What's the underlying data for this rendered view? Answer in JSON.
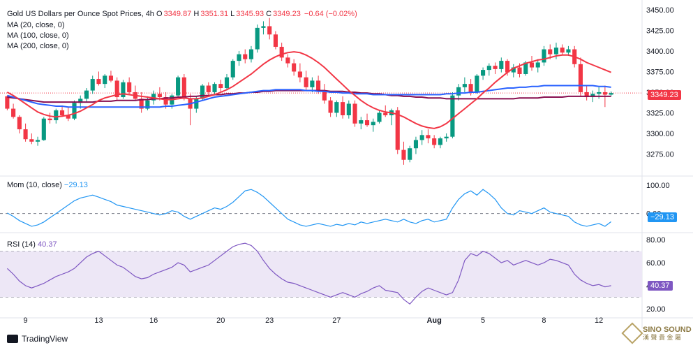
{
  "header": {
    "title": "Gold US Dollars per Ounce Spot Prices, 4h",
    "o_label": "O",
    "o_val": "3349.87",
    "h_label": "H",
    "h_val": "3351.31",
    "l_label": "L",
    "l_val": "3345.93",
    "c_label": "C",
    "c_val": "3349.23",
    "change": "−0.64 (−0.02%)"
  },
  "legend": {
    "ma20": "MA (20, close, 0)",
    "ma100": "MA (100, close, 0)",
    "ma200": "MA (200, close, 0)",
    "mom": "Mom (10, close)",
    "mom_val": "−29.13",
    "rsi": "RSI (14)",
    "rsi_val": "40.37"
  },
  "branding": {
    "tradingview": "TradingView",
    "sino_top": "SINO SOUND",
    "sino_bottom": "漢 聲 貴 金 屬"
  },
  "colors": {
    "up": "#089981",
    "down": "#f23645",
    "ma20": "#f23645",
    "ma100": "#2962ff",
    "ma200": "#880e4f",
    "mom": "#2196f3",
    "rsi": "#7e57c2",
    "rsi_band": "#ede7f6",
    "price_tag": "#f23645",
    "mom_tag": "#2196f3",
    "rsi_tag": "#7e57c2"
  },
  "chart_data": [
    {
      "type": "candlestick",
      "title": "Gold US Dollars per Ounce Spot Prices, 4h",
      "x_ticks": [
        "9",
        "13",
        "16",
        "20",
        "23",
        "27",
        "Aug",
        "5",
        "8",
        "12"
      ],
      "y_ticks": [
        "3450.00",
        "3425.00",
        "3400.00",
        "3375.00",
        "3350.00",
        "3325.00",
        "3300.00",
        "3275.00"
      ],
      "ylim": [
        3250,
        3455
      ],
      "last_price": "3349.23",
      "candles": [
        [
          3345,
          3346,
          3328,
          3330
        ],
        [
          3330,
          3336,
          3318,
          3320
        ],
        [
          3320,
          3322,
          3300,
          3305
        ],
        [
          3305,
          3312,
          3290,
          3293
        ],
        [
          3293,
          3300,
          3287,
          3290
        ],
        [
          3290,
          3296,
          3285,
          3292
        ],
        [
          3292,
          3320,
          3291,
          3318
        ],
        [
          3318,
          3325,
          3312,
          3316
        ],
        [
          3316,
          3330,
          3312,
          3328
        ],
        [
          3328,
          3334,
          3320,
          3322
        ],
        [
          3322,
          3332,
          3315,
          3318
        ],
        [
          3318,
          3340,
          3316,
          3337
        ],
        [
          3337,
          3346,
          3330,
          3342
        ],
        [
          3342,
          3355,
          3338,
          3352
        ],
        [
          3352,
          3370,
          3348,
          3366
        ],
        [
          3366,
          3375,
          3358,
          3360
        ],
        [
          3360,
          3372,
          3355,
          3370
        ],
        [
          3370,
          3376,
          3362,
          3364
        ],
        [
          3364,
          3368,
          3340,
          3344
        ],
        [
          3344,
          3365,
          3342,
          3362
        ],
        [
          3362,
          3368,
          3348,
          3350
        ],
        [
          3350,
          3358,
          3340,
          3342
        ],
        [
          3342,
          3350,
          3325,
          3330
        ],
        [
          3330,
          3345,
          3328,
          3340
        ],
        [
          3340,
          3352,
          3335,
          3348
        ],
        [
          3348,
          3356,
          3340,
          3344
        ],
        [
          3344,
          3350,
          3330,
          3335
        ],
        [
          3335,
          3348,
          3330,
          3346
        ],
        [
          3346,
          3370,
          3344,
          3368
        ],
        [
          3368,
          3372,
          3340,
          3342
        ],
        [
          3342,
          3348,
          3310,
          3330
        ],
        [
          3330,
          3345,
          3325,
          3342
        ],
        [
          3342,
          3360,
          3340,
          3358
        ],
        [
          3358,
          3362,
          3345,
          3350
        ],
        [
          3350,
          3362,
          3346,
          3360
        ],
        [
          3360,
          3365,
          3350,
          3355
        ],
        [
          3355,
          3372,
          3352,
          3368
        ],
        [
          3368,
          3390,
          3365,
          3388
        ],
        [
          3388,
          3400,
          3382,
          3396
        ],
        [
          3396,
          3402,
          3385,
          3390
        ],
        [
          3390,
          3406,
          3386,
          3402
        ],
        [
          3402,
          3432,
          3398,
          3428
        ],
        [
          3428,
          3436,
          3420,
          3430
        ],
        [
          3430,
          3440,
          3414,
          3420
        ],
        [
          3420,
          3424,
          3402,
          3405
        ],
        [
          3405,
          3410,
          3388,
          3392
        ],
        [
          3392,
          3396,
          3380,
          3385
        ],
        [
          3385,
          3390,
          3370,
          3375
        ],
        [
          3375,
          3385,
          3362,
          3368
        ],
        [
          3368,
          3376,
          3352,
          3356
        ],
        [
          3356,
          3368,
          3350,
          3364
        ],
        [
          3364,
          3370,
          3348,
          3352
        ],
        [
          3352,
          3360,
          3336,
          3340
        ],
        [
          3340,
          3344,
          3320,
          3325
        ],
        [
          3325,
          3340,
          3320,
          3338
        ],
        [
          3338,
          3345,
          3318,
          3322
        ],
        [
          3322,
          3340,
          3318,
          3336
        ],
        [
          3336,
          3340,
          3308,
          3312
        ],
        [
          3312,
          3320,
          3305,
          3316
        ],
        [
          3316,
          3324,
          3308,
          3310
        ],
        [
          3310,
          3318,
          3302,
          3314
        ],
        [
          3314,
          3328,
          3312,
          3325
        ],
        [
          3325,
          3334,
          3320,
          3322
        ],
        [
          3322,
          3330,
          3310,
          3328
        ],
        [
          3328,
          3332,
          3275,
          3280
        ],
        [
          3280,
          3290,
          3262,
          3268
        ],
        [
          3268,
          3285,
          3265,
          3282
        ],
        [
          3282,
          3296,
          3275,
          3292
        ],
        [
          3292,
          3304,
          3286,
          3298
        ],
        [
          3298,
          3305,
          3288,
          3294
        ],
        [
          3294,
          3298,
          3282,
          3286
        ],
        [
          3286,
          3296,
          3282,
          3294
        ],
        [
          3294,
          3300,
          3290,
          3296
        ],
        [
          3296,
          3350,
          3294,
          3346
        ],
        [
          3346,
          3360,
          3340,
          3356
        ],
        [
          3356,
          3368,
          3350,
          3360
        ],
        [
          3360,
          3366,
          3346,
          3350
        ],
        [
          3350,
          3372,
          3348,
          3370
        ],
        [
          3370,
          3380,
          3365,
          3377
        ],
        [
          3377,
          3385,
          3370,
          3382
        ],
        [
          3382,
          3386,
          3372,
          3378
        ],
        [
          3378,
          3392,
          3374,
          3388
        ],
        [
          3388,
          3390,
          3370,
          3374
        ],
        [
          3374,
          3384,
          3368,
          3380
        ],
        [
          3380,
          3385,
          3368,
          3372
        ],
        [
          3372,
          3388,
          3370,
          3386
        ],
        [
          3386,
          3394,
          3376,
          3380
        ],
        [
          3380,
          3390,
          3374,
          3386
        ],
        [
          3386,
          3406,
          3382,
          3402
        ],
        [
          3402,
          3408,
          3390,
          3396
        ],
        [
          3396,
          3410,
          3390,
          3404
        ],
        [
          3404,
          3408,
          3395,
          3398
        ],
        [
          3398,
          3406,
          3394,
          3402
        ],
        [
          3402,
          3406,
          3380,
          3384
        ],
        [
          3384,
          3392,
          3345,
          3350
        ],
        [
          3350,
          3358,
          3340,
          3344
        ],
        [
          3344,
          3352,
          3338,
          3348
        ],
        [
          3348,
          3356,
          3342,
          3350
        ],
        [
          3350,
          3358,
          3332,
          3347
        ],
        [
          3347,
          3351,
          3345,
          3349
        ]
      ],
      "ma20": [
        3350,
        3346,
        3341,
        3336,
        3331,
        3326,
        3323,
        3321,
        3320,
        3321,
        3322,
        3324,
        3327,
        3331,
        3335,
        3340,
        3343,
        3345,
        3347,
        3348,
        3347,
        3346,
        3345,
        3344,
        3343,
        3342,
        3341,
        3341,
        3342,
        3343,
        3342,
        3342,
        3343,
        3345,
        3347,
        3350,
        3353,
        3357,
        3362,
        3367,
        3372,
        3378,
        3384,
        3389,
        3393,
        3396,
        3398,
        3399,
        3398,
        3395,
        3391,
        3386,
        3380,
        3373,
        3366,
        3359,
        3352,
        3346,
        3340,
        3335,
        3331,
        3328,
        3326,
        3325,
        3323,
        3320,
        3316,
        3312,
        3309,
        3307,
        3306,
        3308,
        3312,
        3318,
        3324,
        3330,
        3336,
        3342,
        3349,
        3355,
        3362,
        3368,
        3374,
        3379,
        3382,
        3385,
        3387,
        3389,
        3390,
        3392,
        3394,
        3395,
        3395,
        3393,
        3390,
        3386,
        3383,
        3380,
        3377,
        3374
      ],
      "ma100": [
        3346,
        3344,
        3342,
        3340,
        3338,
        3336,
        3335,
        3334,
        3333,
        3333,
        3332,
        3332,
        3332,
        3332,
        3332,
        3332,
        3332,
        3332,
        3332,
        3332,
        3332,
        3332,
        3332,
        3332,
        3332,
        3332,
        3333,
        3333,
        3334,
        3335,
        3336,
        3338,
        3340,
        3342,
        3344,
        3345,
        3346,
        3347,
        3348,
        3349,
        3350,
        3351,
        3352,
        3352,
        3353,
        3353,
        3353,
        3353,
        3353,
        3352,
        3352,
        3351,
        3351,
        3350,
        3350,
        3349,
        3349,
        3348,
        3348,
        3348,
        3347,
        3347,
        3347,
        3347,
        3347,
        3347,
        3347,
        3347,
        3347,
        3347,
        3347,
        3347,
        3348,
        3348,
        3349,
        3349,
        3350,
        3350,
        3351,
        3352,
        3353,
        3354,
        3355,
        3355,
        3356,
        3356,
        3357,
        3357,
        3358,
        3358,
        3358,
        3358,
        3358,
        3358,
        3358,
        3358,
        3358,
        3357,
        3357,
        3356
      ],
      "ma200": [
        3344,
        3343,
        3342,
        3341,
        3340,
        3339,
        3338,
        3338,
        3338,
        3338,
        3338,
        3338,
        3338,
        3338,
        3338,
        3339,
        3339,
        3339,
        3340,
        3340,
        3340,
        3340,
        3341,
        3341,
        3342,
        3342,
        3343,
        3343,
        3344,
        3344,
        3345,
        3345,
        3346,
        3346,
        3347,
        3347,
        3348,
        3348,
        3349,
        3349,
        3350,
        3350,
        3351,
        3351,
        3352,
        3352,
        3352,
        3352,
        3352,
        3352,
        3352,
        3352,
        3352,
        3351,
        3351,
        3351,
        3350,
        3350,
        3349,
        3349,
        3348,
        3348,
        3347,
        3346,
        3346,
        3345,
        3345,
        3344,
        3344,
        3343,
        3343,
        3343,
        3342,
        3342,
        3342,
        3342,
        3342,
        3342,
        3342,
        3342,
        3342,
        3342,
        3342,
        3342,
        3343,
        3343,
        3343,
        3343,
        3344,
        3344,
        3344,
        3344,
        3345,
        3345,
        3345,
        3345,
        3345,
        3345,
        3345,
        3345
      ]
    },
    {
      "type": "line",
      "title": "Mom (10, close)",
      "y_ticks": [
        "100.00",
        "0.00"
      ],
      "ylim": [
        -60,
        125
      ],
      "last_value": "−29.13",
      "values": [
        2,
        -10,
        -25,
        -35,
        -45,
        -40,
        -30,
        -15,
        0,
        15,
        30,
        45,
        55,
        60,
        65,
        58,
        50,
        42,
        30,
        25,
        20,
        15,
        10,
        5,
        0,
        -5,
        0,
        10,
        5,
        -10,
        -20,
        -10,
        0,
        10,
        20,
        15,
        25,
        40,
        60,
        80,
        85,
        75,
        60,
        40,
        20,
        0,
        -20,
        -30,
        -40,
        -45,
        -40,
        -35,
        -40,
        -45,
        -38,
        -42,
        -35,
        -40,
        -30,
        -35,
        -30,
        -25,
        -20,
        -25,
        -30,
        -20,
        -30,
        -35,
        -25,
        -20,
        -30,
        -25,
        -20,
        20,
        50,
        70,
        80,
        65,
        85,
        70,
        50,
        20,
        0,
        -5,
        10,
        5,
        0,
        10,
        20,
        5,
        0,
        -5,
        -10,
        -30,
        -40,
        -45,
        -40,
        -35,
        -45,
        -29
      ]
    },
    {
      "type": "line",
      "title": "RSI (14)",
      "y_ticks": [
        "80.00",
        "60.00",
        "40.00",
        "20.00"
      ],
      "ylim": [
        15,
        85
      ],
      "bands": [
        30,
        50,
        70
      ],
      "last_value": "40.37",
      "values": [
        55,
        50,
        44,
        40,
        38,
        40,
        42,
        45,
        48,
        50,
        52,
        55,
        60,
        65,
        68,
        70,
        66,
        62,
        58,
        56,
        52,
        48,
        46,
        47,
        50,
        52,
        54,
        56,
        60,
        58,
        52,
        54,
        56,
        58,
        62,
        66,
        70,
        74,
        76,
        77,
        75,
        70,
        62,
        55,
        50,
        46,
        43,
        42,
        40,
        38,
        36,
        34,
        32,
        30,
        32,
        34,
        32,
        30,
        33,
        35,
        38,
        40,
        36,
        35,
        34,
        28,
        24,
        30,
        35,
        38,
        36,
        34,
        32,
        34,
        45,
        62,
        68,
        66,
        70,
        68,
        64,
        60,
        62,
        58,
        60,
        62,
        60,
        58,
        60,
        63,
        62,
        60,
        58,
        50,
        45,
        42,
        40,
        41,
        39,
        40
      ]
    }
  ]
}
